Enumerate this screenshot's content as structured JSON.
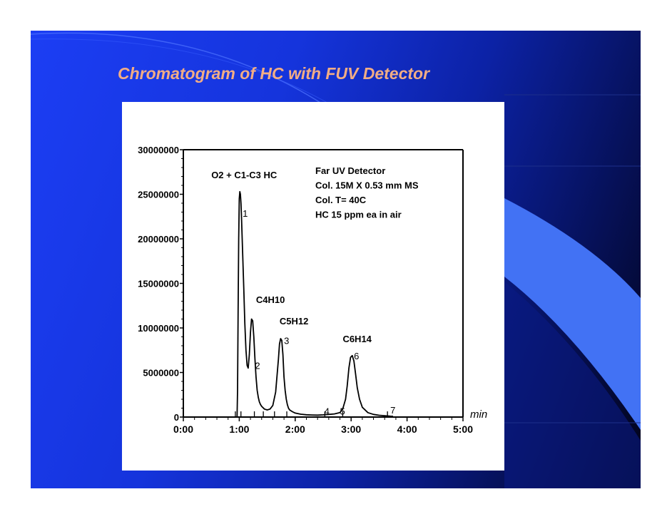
{
  "slide": {
    "title": "Chromatogram of HC with FUV Detector",
    "colors": {
      "background": "#1534dc",
      "title": "#f2ad85",
      "dark": "#020318"
    }
  },
  "chart_data": {
    "type": "line",
    "title": "",
    "xlabel": "",
    "ylabel": "",
    "x_unit_label": "min",
    "xlim": [
      0,
      5
    ],
    "ylim": [
      0,
      30000000
    ],
    "x_ticks": [
      "0:00",
      "1:00",
      "2:00",
      "3:00",
      "4:00",
      "5:00"
    ],
    "y_ticks": [
      "0",
      "5000000",
      "10000000",
      "15000000",
      "20000000",
      "25000000",
      "30000000"
    ],
    "grid": false,
    "series": [
      {
        "x": [
          0.96,
          0.97,
          0.98,
          0.99,
          1.0,
          1.01,
          1.02,
          1.03,
          1.04,
          1.05,
          1.06,
          1.08,
          1.1,
          1.12,
          1.14,
          1.16,
          1.18,
          1.2,
          1.22,
          1.24,
          1.26,
          1.28,
          1.3,
          1.32,
          1.34,
          1.36,
          1.38,
          1.4,
          1.45,
          1.5,
          1.55,
          1.6,
          1.65,
          1.7,
          1.72,
          1.74,
          1.76,
          1.78,
          1.8,
          1.82,
          1.84,
          1.86,
          1.88,
          1.9,
          1.95,
          2.0,
          2.1,
          2.2,
          2.3,
          2.4,
          2.5,
          2.6,
          2.7,
          2.8,
          2.85,
          2.9,
          2.93,
          2.96,
          2.99,
          3.02,
          3.05,
          3.08,
          3.11,
          3.15,
          3.2,
          3.3,
          3.4,
          3.5,
          3.6,
          3.7,
          3.75
        ],
        "values": [
          0,
          3000000,
          12000000,
          20000000,
          24500000,
          25300000,
          25000000,
          24000000,
          22500000,
          20500000,
          18500000,
          14500000,
          10500000,
          7500000,
          5800000,
          5500000,
          7000000,
          9500000,
          11000000,
          10800000,
          9000000,
          6500000,
          4500000,
          3000000,
          2200000,
          1700000,
          1400000,
          1200000,
          900000,
          800000,
          900000,
          1300000,
          2800000,
          6500000,
          8200000,
          8800000,
          8600000,
          7000000,
          4500000,
          3000000,
          2000000,
          1400000,
          1000000,
          800000,
          600000,
          450000,
          320000,
          260000,
          230000,
          220000,
          250000,
          300000,
          350000,
          500000,
          900000,
          2000000,
          3500000,
          5500000,
          6700000,
          6900000,
          6300000,
          4800000,
          3300000,
          2000000,
          1100000,
          500000,
          300000,
          200000,
          150000,
          100000,
          80000
        ]
      }
    ],
    "annotations": [
      {
        "text": "O2 + C1-C3 HC",
        "x": 0.5,
        "y": 26800000
      },
      {
        "text": "C4H10",
        "x": 1.3,
        "y": 12800000
      },
      {
        "text": "C5H12",
        "x": 1.72,
        "y": 10400000
      },
      {
        "text": "C6H14",
        "x": 2.85,
        "y": 8400000
      }
    ],
    "info_lines": [
      "Far UV Detector",
      "Col. 15M X 0.53 mm MS",
      "Col. T= 40C",
      "HC 15 ppm ea in air"
    ],
    "peak_numbers": [
      {
        "label": "1",
        "x": 1.06,
        "y": 22500000
      },
      {
        "label": "2",
        "x": 1.28,
        "y": 5400000
      },
      {
        "label": "3",
        "x": 1.8,
        "y": 8200000
      },
      {
        "label": "4",
        "x": 2.52,
        "y": 300000
      },
      {
        "label": "5",
        "x": 2.8,
        "y": 300000
      },
      {
        "label": "6",
        "x": 3.05,
        "y": 6500000
      },
      {
        "label": "7",
        "x": 3.7,
        "y": 400000
      }
    ],
    "event_ticks_x": [
      0.93,
      1.03,
      1.27,
      1.43,
      1.63,
      1.85,
      2.53,
      2.85,
      3.65
    ]
  }
}
